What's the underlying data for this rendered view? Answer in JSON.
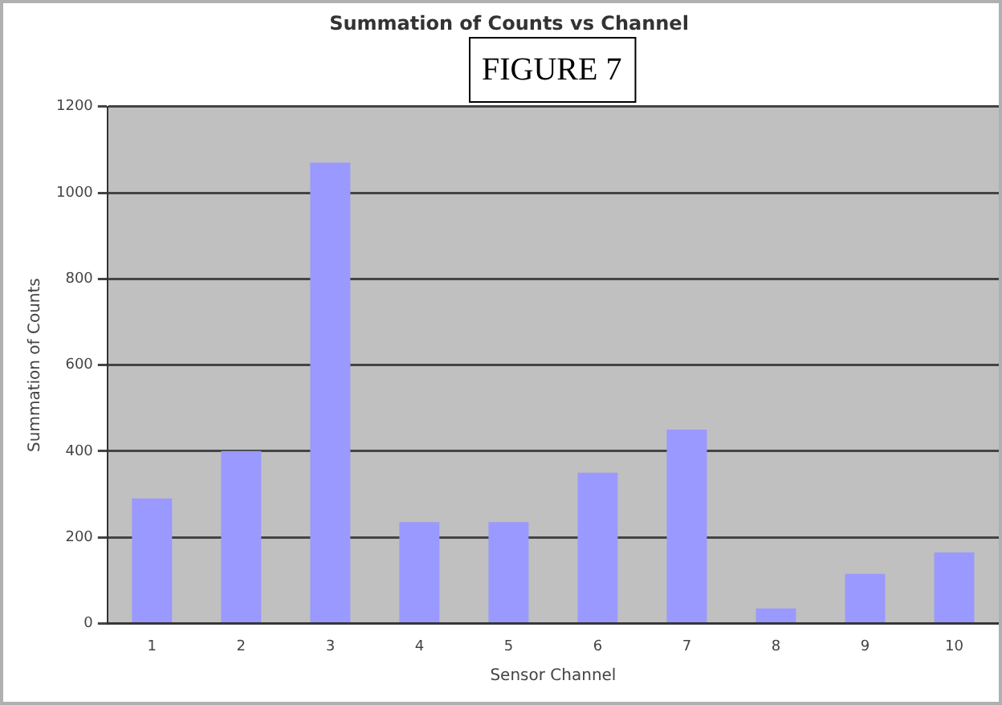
{
  "chart_data": {
    "type": "bar",
    "title": "Summation of Counts vs Channel",
    "xlabel": "Sensor Channel",
    "ylabel": "Summation of Counts",
    "annotations": [
      "FIGURE 7"
    ],
    "categories": [
      "1",
      "2",
      "3",
      "4",
      "5",
      "6",
      "7",
      "8",
      "9",
      "10"
    ],
    "values": [
      290,
      400,
      1070,
      235,
      235,
      350,
      450,
      35,
      115,
      165
    ],
    "color": "#9999ff",
    "ylim": [
      0,
      1200
    ],
    "yticks": [
      0,
      200,
      400,
      600,
      800,
      1000,
      1200
    ],
    "grid": "y",
    "legend": false
  }
}
